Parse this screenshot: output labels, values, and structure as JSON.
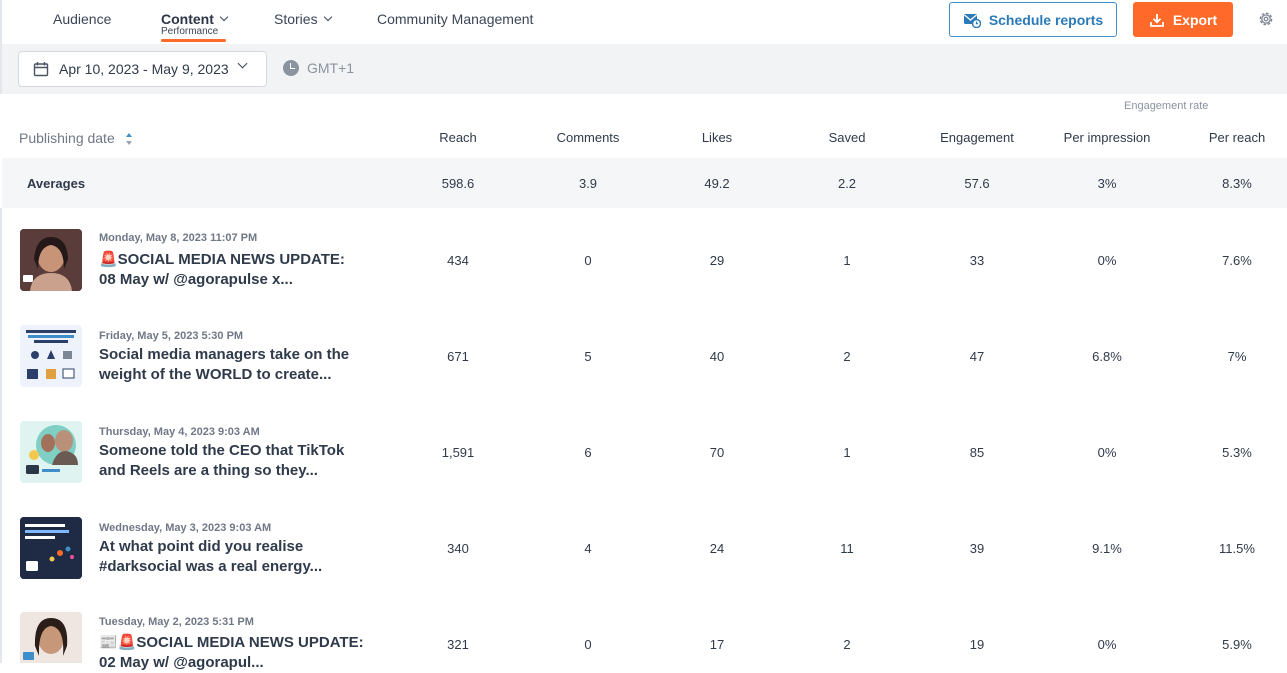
{
  "nav": {
    "items": [
      {
        "label": "Audience"
      },
      {
        "label": "Content",
        "sub": "Performance"
      },
      {
        "label": "Stories"
      },
      {
        "label": "Community Management"
      }
    ],
    "schedule_label": "Schedule reports",
    "export_label": "Export"
  },
  "filters": {
    "date_range": "Apr 10, 2023 - May 9, 2023",
    "timezone": "GMT+1"
  },
  "table": {
    "group_label": "Engagement rate",
    "headers": [
      "Publishing date",
      "Reach",
      "Comments",
      "Likes",
      "Saved",
      "Engagement",
      "Per impression",
      "Per reach"
    ],
    "averages": {
      "label": "Averages",
      "values": [
        "598.6",
        "3.9",
        "49.2",
        "2.2",
        "57.6",
        "3%",
        "8.3%"
      ]
    },
    "rows": [
      {
        "date": "Monday, May 8, 2023 11:07 PM",
        "title_line1": "🚨SOCIAL MEDIA NEWS UPDATE:",
        "title_line2": "08 May w/ @agorapulse x...",
        "values": [
          "434",
          "0",
          "29",
          "1",
          "33",
          "0%",
          "7.6%"
        ]
      },
      {
        "date": "Friday, May 5, 2023 5:30 PM",
        "title_line1": "Social media managers take on the",
        "title_line2": "weight of the WORLD to create...",
        "values": [
          "671",
          "5",
          "40",
          "2",
          "47",
          "6.8%",
          "7%"
        ]
      },
      {
        "date": "Thursday, May 4, 2023 9:03 AM",
        "title_line1": "Someone told the CEO that TikTok",
        "title_line2": "and Reels are a thing so they...",
        "values": [
          "1,591",
          "6",
          "70",
          "1",
          "85",
          "0%",
          "5.3%"
        ]
      },
      {
        "date": "Wednesday, May 3, 2023 9:03 AM",
        "title_line1": "At what point did you realise",
        "title_line2": "#darksocial was a real energy...",
        "values": [
          "340",
          "4",
          "24",
          "11",
          "39",
          "9.1%",
          "11.5%"
        ]
      },
      {
        "date": "Tuesday, May 2, 2023 5:31 PM",
        "title_line1": "📰🚨SOCIAL MEDIA NEWS UPDATE:",
        "title_line2": "02 May w/ @agorapul...",
        "values": [
          "321",
          "0",
          "17",
          "2",
          "19",
          "0%",
          "5.9%"
        ]
      }
    ]
  },
  "colors": {
    "accent": "#ff6a2a",
    "link_blue": "#2a7ab9"
  }
}
